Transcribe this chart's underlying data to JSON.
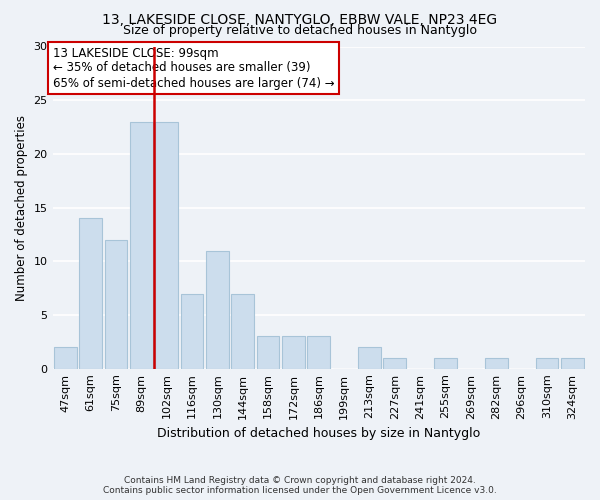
{
  "title1": "13, LAKESIDE CLOSE, NANTYGLO, EBBW VALE, NP23 4EG",
  "title2": "Size of property relative to detached houses in Nantyglo",
  "xlabel": "Distribution of detached houses by size in Nantyglo",
  "ylabel": "Number of detached properties",
  "bar_labels": [
    "47sqm",
    "61sqm",
    "75sqm",
    "89sqm",
    "102sqm",
    "116sqm",
    "130sqm",
    "144sqm",
    "158sqm",
    "172sqm",
    "186sqm",
    "199sqm",
    "213sqm",
    "227sqm",
    "241sqm",
    "255sqm",
    "269sqm",
    "282sqm",
    "296sqm",
    "310sqm",
    "324sqm"
  ],
  "bar_values": [
    2,
    14,
    12,
    23,
    23,
    7,
    11,
    7,
    3,
    3,
    3,
    0,
    2,
    1,
    0,
    1,
    0,
    1,
    0,
    1,
    1
  ],
  "bar_color": "#ccdded",
  "bar_edge_color": "#a8c4d8",
  "vline_color": "#cc0000",
  "annotation_text1": "13 LAKESIDE CLOSE: 99sqm",
  "annotation_text2": "← 35% of detached houses are smaller (39)",
  "annotation_text3": "65% of semi-detached houses are larger (74) →",
  "annotation_box_color": "#ffffff",
  "annotation_border_color": "#cc0000",
  "ylim": [
    0,
    30
  ],
  "yticks": [
    0,
    5,
    10,
    15,
    20,
    25,
    30
  ],
  "footer1": "Contains HM Land Registry data © Crown copyright and database right 2024.",
  "footer2": "Contains public sector information licensed under the Open Government Licence v3.0.",
  "background_color": "#eef2f7",
  "plot_bg_color": "#eef2f7",
  "grid_color": "#ffffff",
  "title1_fontsize": 10,
  "title2_fontsize": 9
}
